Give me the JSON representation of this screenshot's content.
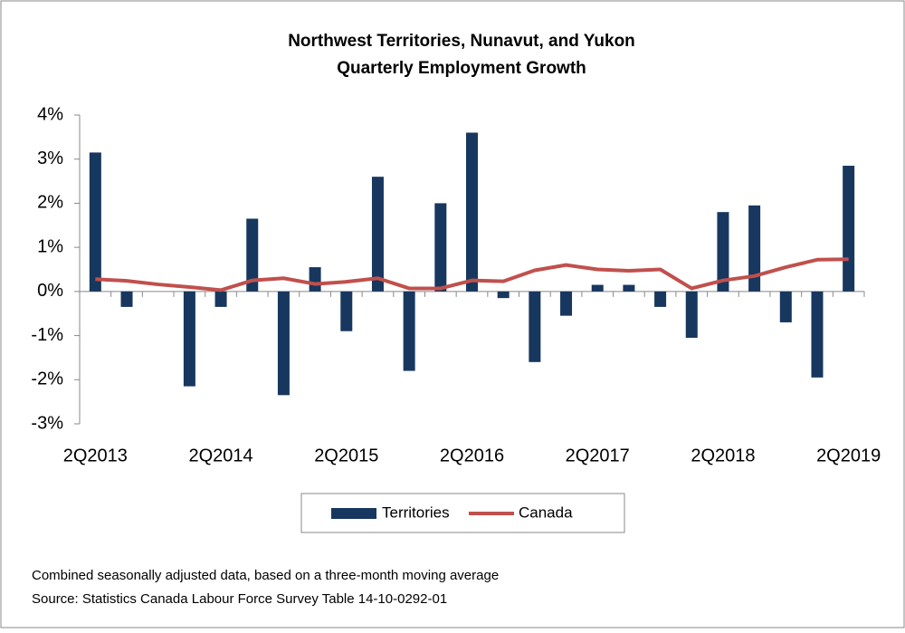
{
  "chart_data": {
    "type": "bar",
    "title": "Northwest Territories, Nunavut, and Yukon",
    "subtitle": "Quarterly Employment Growth",
    "categories": [
      "2Q2013",
      null,
      null,
      null,
      "2Q2014",
      null,
      null,
      null,
      "2Q2015",
      null,
      null,
      null,
      "2Q2016",
      null,
      null,
      null,
      "2Q2017",
      null,
      null,
      null,
      "2Q2018",
      null,
      null,
      null,
      "2Q2019"
    ],
    "series": [
      {
        "name": "Territories",
        "type": "bar",
        "color": "#17375e",
        "values": [
          3.15,
          -0.35,
          0,
          -2.15,
          -0.35,
          1.65,
          -2.35,
          0.55,
          -0.9,
          2.6,
          -1.8,
          2.0,
          3.6,
          -0.15,
          -1.6,
          -0.55,
          0.15,
          0.15,
          -0.35,
          -1.05,
          1.8,
          1.95,
          -0.7,
          -1.95,
          2.85
        ]
      },
      {
        "name": "Canada",
        "type": "line",
        "color": "#c0504d",
        "values": [
          0.28,
          0.24,
          0.16,
          0.1,
          0.03,
          0.25,
          0.3,
          0.17,
          0.22,
          0.3,
          0.07,
          0.07,
          0.25,
          0.23,
          0.48,
          0.6,
          0.5,
          0.47,
          0.5,
          0.07,
          0.25,
          0.35,
          0.55,
          0.72,
          0.73
        ]
      }
    ],
    "ylim": [
      -3,
      4
    ],
    "yticks": [
      {
        "value": -3,
        "label": "-3%"
      },
      {
        "value": -2,
        "label": "-2%"
      },
      {
        "value": -1,
        "label": "-1%"
      },
      {
        "value": 0,
        "label": "0%"
      },
      {
        "value": 1,
        "label": "1%"
      },
      {
        "value": 2,
        "label": "2%"
      },
      {
        "value": 3,
        "label": "3%"
      },
      {
        "value": 4,
        "label": "4%"
      }
    ],
    "legend": "bottom",
    "notes": [
      "Combined seasonally adjusted data, based on a three-month moving average",
      "Source: Statistics Canada Labour Force Survey Table 14-10-0292-01"
    ]
  }
}
